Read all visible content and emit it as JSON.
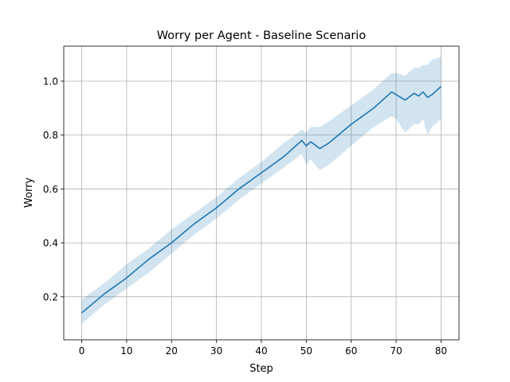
{
  "chart_data": {
    "type": "line",
    "title": "Worry per Agent - Baseline Scenario",
    "xlabel": "Step",
    "ylabel": "Worry",
    "xlim": [
      -4,
      84
    ],
    "ylim": [
      0.04,
      1.13
    ],
    "xticks": [
      0,
      10,
      20,
      30,
      40,
      50,
      60,
      70,
      80
    ],
    "xtick_labels": [
      "0",
      "10",
      "20",
      "30",
      "40",
      "50",
      "60",
      "70",
      "80"
    ],
    "yticks": [
      0.2,
      0.4,
      0.6,
      0.8,
      1.0
    ],
    "ytick_labels": [
      "0.2",
      "0.4",
      "0.6",
      "0.8",
      "1.0"
    ],
    "grid": true,
    "colors": {
      "line": "#1f77b4",
      "band": "#1f77b4",
      "grid": "#b0b0b0"
    },
    "series": [
      {
        "x": [
          0,
          5,
          10,
          15,
          20,
          25,
          30,
          35,
          40,
          45,
          49,
          50,
          51,
          53,
          55,
          60,
          65,
          69,
          70,
          72,
          74,
          75,
          76,
          77,
          78,
          80
        ],
        "y": [
          0.14,
          0.21,
          0.27,
          0.34,
          0.4,
          0.47,
          0.53,
          0.6,
          0.66,
          0.72,
          0.78,
          0.76,
          0.775,
          0.75,
          0.77,
          0.84,
          0.9,
          0.96,
          0.95,
          0.93,
          0.955,
          0.945,
          0.96,
          0.94,
          0.95,
          0.98
        ],
        "lower": [
          0.1,
          0.17,
          0.23,
          0.29,
          0.36,
          0.43,
          0.49,
          0.56,
          0.62,
          0.68,
          0.73,
          0.69,
          0.71,
          0.67,
          0.69,
          0.76,
          0.83,
          0.87,
          0.86,
          0.81,
          0.84,
          0.84,
          0.86,
          0.8,
          0.83,
          0.86
        ],
        "upper": [
          0.19,
          0.25,
          0.32,
          0.38,
          0.45,
          0.51,
          0.57,
          0.64,
          0.7,
          0.77,
          0.82,
          0.81,
          0.83,
          0.83,
          0.85,
          0.91,
          0.97,
          1.03,
          1.03,
          1.02,
          1.05,
          1.05,
          1.06,
          1.06,
          1.08,
          1.09
        ]
      }
    ]
  }
}
